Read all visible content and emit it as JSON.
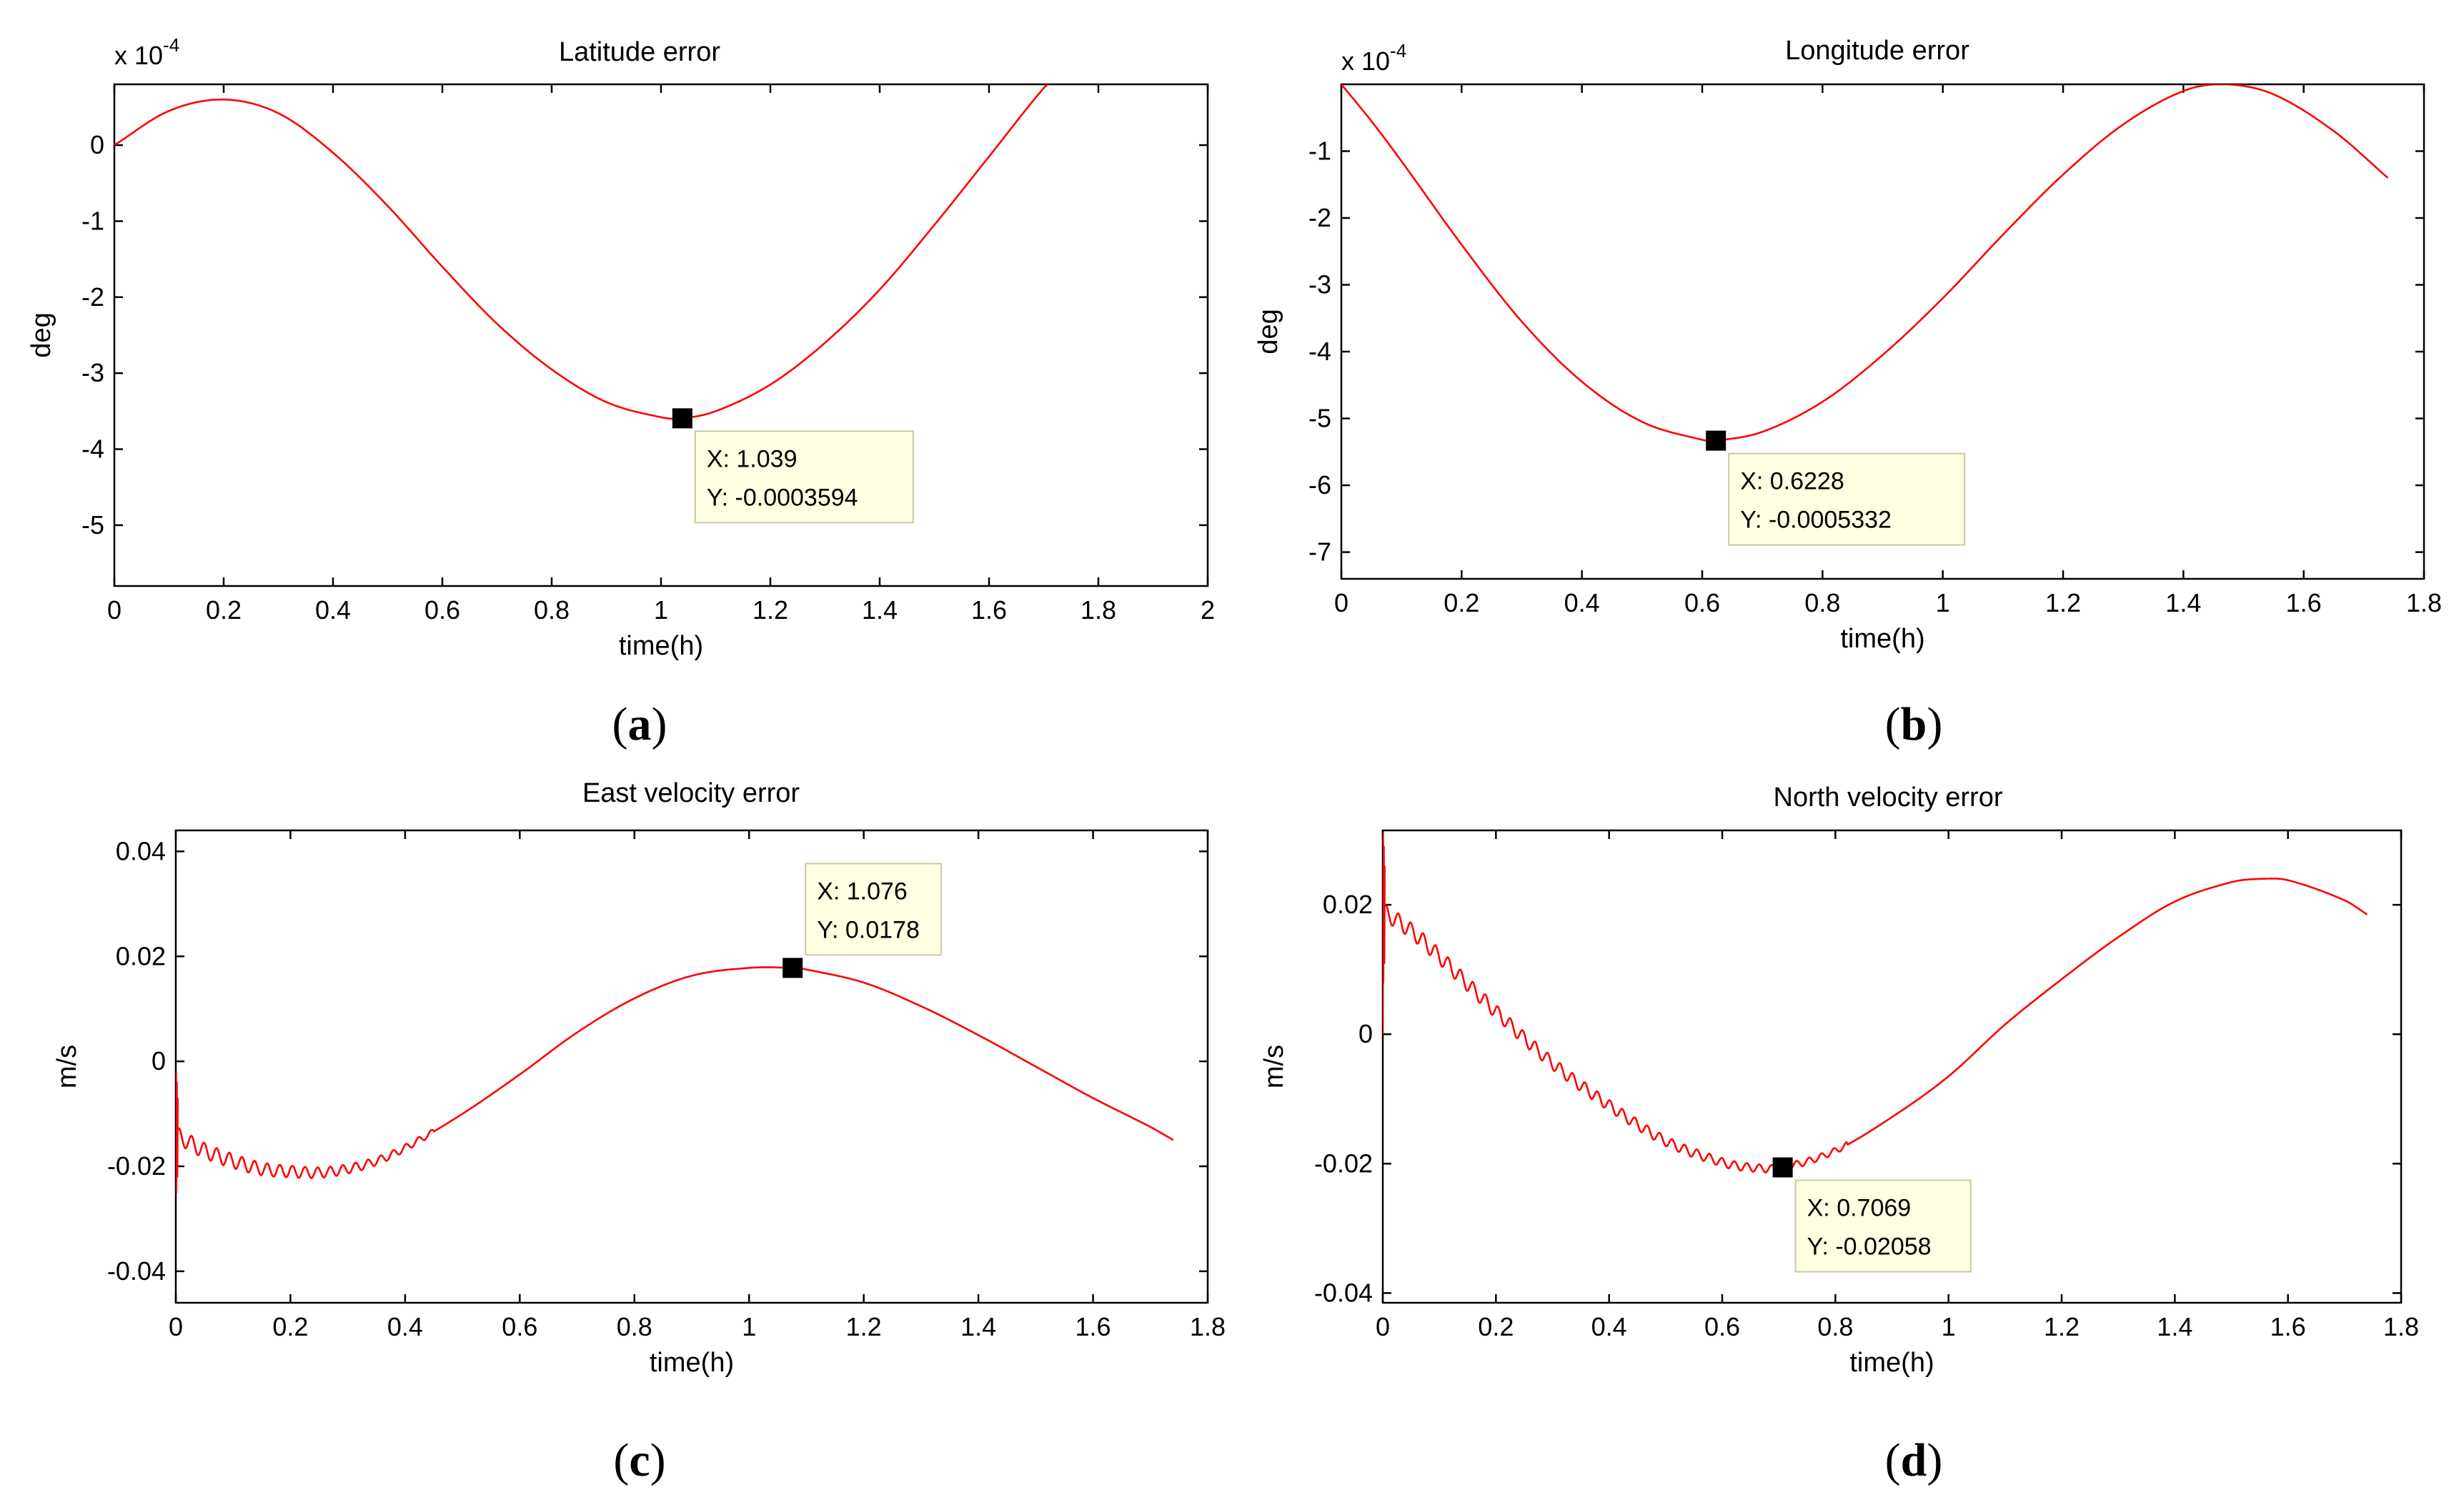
{
  "chart_data": [
    {
      "type": "line",
      "panel": "a",
      "caption_letter": "a",
      "title": "Latitude error",
      "xlabel": "time(h)",
      "ylabel": "deg",
      "exponent_base": "x 10",
      "exponent_power": "-4",
      "xlim": [
        0,
        2
      ],
      "ylim": [
        -5.8,
        0.8
      ],
      "xticks": [
        0,
        0.2,
        0.4,
        0.6,
        0.8,
        1,
        1.2,
        1.4,
        1.6,
        1.8,
        2
      ],
      "xtick_labels": [
        "0",
        "0.2",
        "0.4",
        "0.6",
        "0.8",
        "1",
        "1.2",
        "1.4",
        "1.6",
        "1.8",
        "2"
      ],
      "yticks": [
        -5,
        -4,
        -3,
        -2,
        -1,
        0
      ],
      "ytick_labels": [
        "-5",
        "-4",
        "-3",
        "-2",
        "-1",
        "0"
      ],
      "series": [
        {
          "name": "Latitude error",
          "color": "#ff0000",
          "x": [
            0,
            0.1,
            0.2,
            0.3,
            0.4,
            0.5,
            0.6,
            0.7,
            0.8,
            0.9,
            1.0,
            1.039,
            1.1,
            1.2,
            1.3,
            1.4,
            1.5,
            1.6,
            1.7,
            1.72
          ],
          "y": [
            0,
            0.45,
            0.6,
            0.42,
            -0.1,
            -0.8,
            -1.6,
            -2.35,
            -2.95,
            -3.38,
            -3.58,
            -3.594,
            -3.5,
            -3.15,
            -2.6,
            -1.9,
            -1.05,
            -0.15,
            0.75,
            0.85
          ]
        }
      ],
      "datatip": {
        "x": 1.039,
        "y": -3.594,
        "x_text": "X: 1.039",
        "y_text": "Y: -0.0003594",
        "placement": "below-right"
      }
    },
    {
      "type": "line",
      "panel": "b",
      "caption_letter": "b",
      "title": "Longitude error",
      "xlabel": "time(h)",
      "ylabel": "deg",
      "exponent_base": "x 10",
      "exponent_power": "-4",
      "xlim": [
        0,
        1.8
      ],
      "ylim": [
        -7.4,
        0
      ],
      "xticks": [
        0,
        0.2,
        0.4,
        0.6,
        0.8,
        1,
        1.2,
        1.4,
        1.6,
        1.8
      ],
      "xtick_labels": [
        "0",
        "0.2",
        "0.4",
        "0.6",
        "0.8",
        "1",
        "1.2",
        "1.4",
        "1.6",
        "1.8"
      ],
      "yticks": [
        -7,
        -6,
        -5,
        -4,
        -3,
        -2,
        -1
      ],
      "ytick_labels": [
        "-7",
        "-6",
        "-5",
        "-4",
        "-3",
        "-2",
        "-1"
      ],
      "series": [
        {
          "name": "Longitude error",
          "color": "#ff0000",
          "x": [
            0,
            0.05,
            0.1,
            0.2,
            0.3,
            0.4,
            0.5,
            0.6,
            0.6228,
            0.7,
            0.8,
            0.9,
            1.0,
            1.1,
            1.2,
            1.3,
            1.4,
            1.47,
            1.55,
            1.65,
            1.74
          ],
          "y": [
            0,
            -0.55,
            -1.15,
            -2.4,
            -3.55,
            -4.45,
            -5.05,
            -5.32,
            -5.332,
            -5.2,
            -4.75,
            -4.05,
            -3.2,
            -2.25,
            -1.35,
            -0.6,
            -0.1,
            0,
            -0.15,
            -0.7,
            -1.4
          ]
        }
      ],
      "datatip": {
        "x": 0.6228,
        "y": -5.332,
        "x_text": "X: 0.6228",
        "y_text": "Y: -0.0005332",
        "placement": "below-right"
      }
    },
    {
      "type": "line",
      "panel": "c",
      "caption_letter": "c",
      "title": "East velocity error",
      "xlabel": "time(h)",
      "ylabel": "m/s",
      "xlim": [
        0,
        1.8
      ],
      "ylim": [
        -0.046,
        0.044
      ],
      "xticks": [
        0,
        0.2,
        0.4,
        0.6,
        0.8,
        1,
        1.2,
        1.4,
        1.6,
        1.8
      ],
      "xtick_labels": [
        "0",
        "0.2",
        "0.4",
        "0.6",
        "0.8",
        "1",
        "1.2",
        "1.4",
        "1.6",
        "1.8"
      ],
      "yticks": [
        -0.04,
        -0.02,
        0,
        0.02,
        0.04
      ],
      "ytick_labels": [
        "-0.04",
        "-0.02",
        "0",
        "0.02",
        "0.04"
      ],
      "series": [
        {
          "name": "East velocity error",
          "color": "#ff0000",
          "x": [
            0,
            0.05,
            0.1,
            0.15,
            0.2,
            0.25,
            0.3,
            0.35,
            0.4,
            0.5,
            0.6,
            0.7,
            0.8,
            0.9,
            1.0,
            1.076,
            1.1,
            1.2,
            1.3,
            1.4,
            1.5,
            1.6,
            1.7,
            1.74
          ],
          "y": [
            -0.014,
            -0.017,
            -0.019,
            -0.0205,
            -0.021,
            -0.0212,
            -0.0205,
            -0.019,
            -0.0165,
            -0.01,
            -0.0025,
            0.0055,
            0.012,
            0.0163,
            0.0178,
            0.0178,
            0.0175,
            0.015,
            0.0105,
            0.005,
            -0.001,
            -0.007,
            -0.0125,
            -0.015
          ]
        }
      ],
      "datatip": {
        "x": 1.076,
        "y": 0.0178,
        "x_text": "X: 1.076",
        "y_text": "Y: 0.0178",
        "placement": "above-right"
      }
    },
    {
      "type": "line",
      "panel": "d",
      "caption_letter": "d",
      "title": "North velocity error",
      "xlabel": "time(h)",
      "ylabel": "m/s",
      "xlim": [
        0,
        1.8
      ],
      "ylim": [
        -0.0415,
        0.0315
      ],
      "xticks": [
        0,
        0.2,
        0.4,
        0.6,
        0.8,
        1,
        1.2,
        1.4,
        1.6,
        1.8
      ],
      "xtick_labels": [
        "0",
        "0.2",
        "0.4",
        "0.6",
        "0.8",
        "1",
        "1.2",
        "1.4",
        "1.6",
        "1.8"
      ],
      "yticks": [
        -0.04,
        -0.02,
        0,
        0.02
      ],
      "ytick_labels": [
        "-0.04",
        "-0.02",
        "0",
        "0.02"
      ],
      "series": [
        {
          "name": "North velocity error",
          "color": "#ff0000",
          "x": [
            0,
            0.05,
            0.1,
            0.2,
            0.3,
            0.4,
            0.5,
            0.6,
            0.65,
            0.7069,
            0.8,
            0.9,
            1.0,
            1.1,
            1.2,
            1.3,
            1.4,
            1.5,
            1.55,
            1.6,
            1.7,
            1.74
          ],
          "y": [
            0.019,
            0.016,
            0.012,
            0.0035,
            -0.0045,
            -0.011,
            -0.0165,
            -0.0198,
            -0.0206,
            -0.0206,
            -0.018,
            -0.0128,
            -0.0065,
            0.0015,
            0.0085,
            0.015,
            0.0205,
            0.0235,
            0.024,
            0.0238,
            0.0207,
            0.0185
          ]
        }
      ],
      "datatip": {
        "x": 0.7069,
        "y": -0.02058,
        "x_text": "X: 0.7069",
        "y_text": "Y: -0.02058",
        "placement": "below-right"
      }
    }
  ]
}
